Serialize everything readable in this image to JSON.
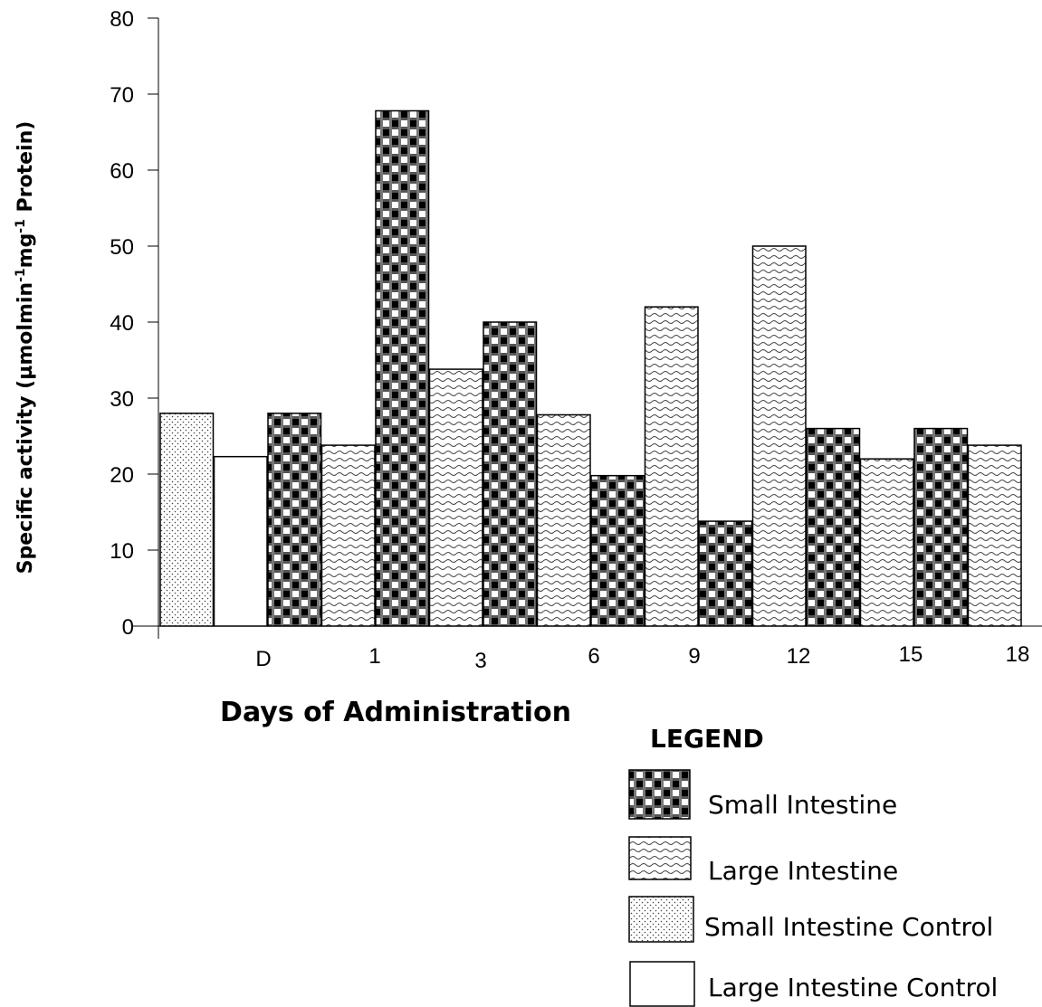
{
  "chart_data": {
    "type": "bar",
    "xlabel": "Days of Administration",
    "ylabel_main": "Specific activity (µmolmin",
    "ylabel_sup1": "-1",
    "ylabel_mid": "mg",
    "ylabel_sup2": "-1",
    "ylabel_end": " Protein)",
    "ylim": [
      0,
      80
    ],
    "yticks": [
      "0",
      "10",
      "20",
      "30",
      "40",
      "50",
      "60",
      "70",
      "80"
    ],
    "categories": [
      "D",
      "1",
      "3",
      "6",
      "9",
      "12",
      "15",
      "18"
    ],
    "bars": [
      {
        "series": "Small Intestine Control",
        "value": 28
      },
      {
        "series": "Large Intestine Control",
        "value": 22.3
      },
      {
        "series": "Small Intestine",
        "value": 28
      },
      {
        "series": "Large Intestine",
        "value": 23.8
      },
      {
        "series": "Small Intestine",
        "value": 67.8
      },
      {
        "series": "Large Intestine",
        "value": 33.8
      },
      {
        "series": "Small Intestine",
        "value": 40
      },
      {
        "series": "Large Intestine",
        "value": 27.8
      },
      {
        "series": "Small Intestine",
        "value": 19.8
      },
      {
        "series": "Large Intestine",
        "value": 42
      },
      {
        "series": "Small Intestine",
        "value": 13.8
      },
      {
        "series": "Large Intestine",
        "value": 50
      },
      {
        "series": "Small Intestine",
        "value": 26
      },
      {
        "series": "Large Intestine",
        "value": 22
      },
      {
        "series": "Small Intestine",
        "value": 26
      },
      {
        "series": "Large Intestine",
        "value": 23.8
      }
    ],
    "legend_title": "LEGEND",
    "legend": [
      {
        "name": "Small Intestine",
        "pattern": "checker"
      },
      {
        "name": "Large Intestine",
        "pattern": "wave"
      },
      {
        "name": "Small Intestine Control",
        "pattern": "dots"
      },
      {
        "name": "Large Intestine Control",
        "pattern": "none"
      }
    ],
    "grid": false,
    "legend_position": "bottom-right"
  }
}
